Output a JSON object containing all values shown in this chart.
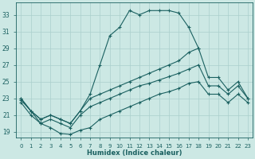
{
  "xlabel": "Humidex (Indice chaleur)",
  "bg_color": "#cce8e4",
  "grid_color": "#aacfcc",
  "line_color": "#1a6060",
  "xlim": [
    -0.5,
    23.5
  ],
  "ylim": [
    18.3,
    34.5
  ],
  "xticks": [
    0,
    1,
    2,
    3,
    4,
    5,
    6,
    7,
    8,
    9,
    10,
    11,
    12,
    13,
    14,
    15,
    16,
    17,
    18,
    19,
    20,
    21,
    22,
    23
  ],
  "yticks": [
    19,
    21,
    23,
    25,
    27,
    29,
    31,
    33
  ],
  "line_peak_x": [
    0,
    1,
    2,
    3,
    4,
    5,
    6,
    7,
    8,
    9,
    10,
    11,
    12,
    13,
    14,
    15,
    16,
    17,
    18
  ],
  "line_peak_y": [
    23.0,
    21.5,
    20.5,
    21.0,
    20.5,
    20.0,
    21.5,
    23.5,
    27.0,
    30.5,
    31.5,
    33.5,
    33.0,
    33.5,
    33.5,
    33.5,
    33.2,
    31.5,
    29.0
  ],
  "line_diag1_x": [
    0,
    1,
    2,
    3,
    4,
    5,
    6,
    7,
    8,
    9,
    10,
    11,
    12,
    13,
    14,
    15,
    16,
    17,
    18,
    19,
    20,
    21,
    22,
    23
  ],
  "line_diag1_y": [
    23.0,
    21.5,
    20.5,
    21.0,
    20.5,
    20.0,
    21.5,
    23.0,
    23.5,
    24.0,
    24.5,
    25.0,
    25.5,
    26.0,
    26.5,
    27.0,
    27.5,
    28.5,
    29.0,
    25.5,
    25.5,
    24.0,
    25.0,
    23.0
  ],
  "line_diag2_x": [
    0,
    1,
    2,
    3,
    4,
    5,
    6,
    7,
    8,
    9,
    10,
    11,
    12,
    13,
    14,
    15,
    16,
    17,
    18,
    19,
    20,
    21,
    22,
    23
  ],
  "line_diag2_y": [
    22.5,
    21.0,
    20.0,
    20.5,
    20.0,
    19.5,
    21.0,
    22.0,
    22.5,
    23.0,
    23.5,
    24.0,
    24.5,
    24.8,
    25.2,
    25.6,
    26.0,
    26.5,
    27.0,
    24.5,
    24.5,
    23.5,
    24.5,
    23.0
  ],
  "line_low_x": [
    0,
    1,
    2,
    3,
    4,
    5,
    6,
    7,
    8,
    9,
    10,
    11,
    12,
    13,
    14,
    15,
    16,
    17,
    18,
    19,
    20,
    21,
    22,
    23
  ],
  "line_low_y": [
    22.8,
    21.5,
    20.0,
    19.5,
    18.8,
    18.7,
    19.2,
    19.5,
    20.5,
    21.0,
    21.5,
    22.0,
    22.5,
    23.0,
    23.5,
    23.8,
    24.2,
    24.8,
    25.0,
    23.5,
    23.5,
    22.5,
    23.5,
    22.5
  ]
}
